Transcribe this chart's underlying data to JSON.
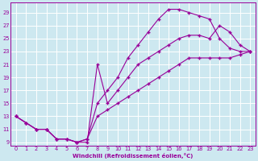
{
  "xlabel": "Windchill (Refroidissement éolien,°C)",
  "bg_color": "#cde8f0",
  "grid_color": "#ffffff",
  "line_color": "#990099",
  "xlim": [
    -0.5,
    23.5
  ],
  "ylim": [
    8.5,
    30.5
  ],
  "xticks": [
    0,
    1,
    2,
    3,
    4,
    5,
    6,
    7,
    8,
    9,
    10,
    11,
    12,
    13,
    14,
    15,
    16,
    17,
    18,
    19,
    20,
    21,
    22,
    23
  ],
  "yticks": [
    9,
    11,
    13,
    15,
    17,
    19,
    21,
    23,
    25,
    27,
    29
  ],
  "line1_x": [
    0,
    1,
    2,
    3,
    4,
    5,
    6,
    7,
    8,
    9,
    10,
    11,
    12,
    13,
    14,
    15,
    16,
    17,
    18,
    19,
    20,
    21,
    22,
    23
  ],
  "line1_y": [
    13,
    12,
    11,
    11,
    9.5,
    9.5,
    9,
    9.5,
    15,
    17,
    19,
    22,
    24,
    26,
    28,
    29.5,
    29.5,
    29,
    28.5,
    28,
    25,
    23.5,
    23,
    23
  ],
  "line2_x": [
    0,
    1,
    2,
    3,
    4,
    5,
    6,
    7,
    8,
    9,
    10,
    11,
    12,
    13,
    14,
    15,
    16,
    17,
    18,
    19,
    20,
    21,
    22,
    23
  ],
  "line2_y": [
    13,
    12,
    11,
    11,
    9.5,
    9.5,
    9,
    9,
    21,
    15,
    17,
    19,
    21,
    22,
    23,
    24,
    25,
    25.5,
    25.5,
    25,
    27,
    26,
    24,
    23
  ],
  "line3_x": [
    0,
    1,
    2,
    3,
    4,
    5,
    6,
    7,
    8,
    9,
    10,
    11,
    12,
    13,
    14,
    15,
    16,
    17,
    18,
    19,
    20,
    21,
    22,
    23
  ],
  "line3_y": [
    13,
    12,
    11,
    11,
    9.5,
    9.5,
    9,
    9.5,
    13,
    14,
    15,
    16,
    17,
    18,
    19,
    20,
    21,
    22,
    22,
    22,
    22,
    22,
    22.5,
    23
  ]
}
